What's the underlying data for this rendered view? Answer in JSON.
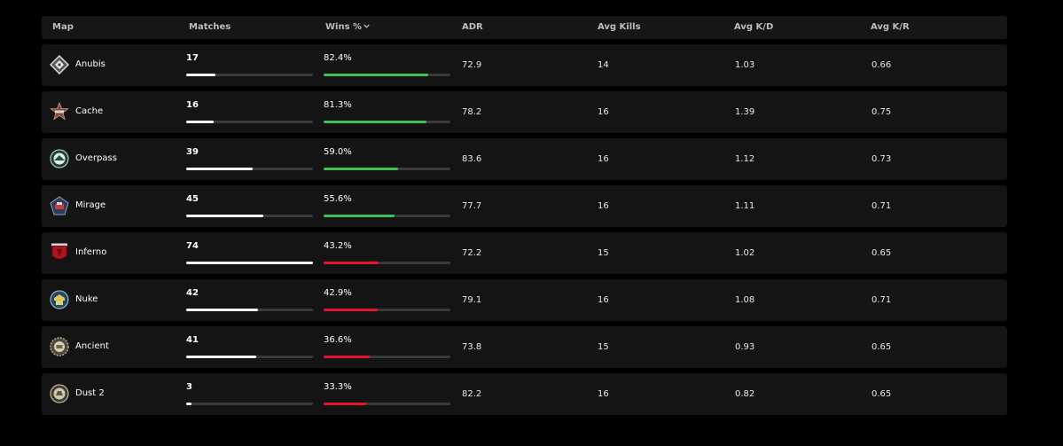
{
  "header": {
    "map": "Map",
    "matches": "Matches",
    "wins": "Wins %",
    "adr": "ADR",
    "avg_kills": "Avg Kills",
    "avg_kd": "Avg K/D",
    "avg_kr": "Avg K/R"
  },
  "colors": {
    "background": "#000000",
    "row": "#141414",
    "header": "#161616",
    "win_positive": "#3ec152",
    "win_negative": "#e4152b",
    "matches_bar": "#ffffff",
    "track": "#3a3a3a"
  },
  "rows": [
    {
      "icon": "anubis-icon",
      "map": "Anubis",
      "matches": "17",
      "matches_fraction": 0.23,
      "wins": "82.4%",
      "wins_fraction": 0.824,
      "win_color": "green",
      "adr": "72.9",
      "avg_kills": "14",
      "avg_kd": "1.03",
      "avg_kr": "0.66"
    },
    {
      "icon": "cache-icon",
      "map": "Cache",
      "matches": "16",
      "matches_fraction": 0.22,
      "wins": "81.3%",
      "wins_fraction": 0.813,
      "win_color": "green",
      "adr": "78.2",
      "avg_kills": "16",
      "avg_kd": "1.39",
      "avg_kr": "0.75"
    },
    {
      "icon": "overpass-icon",
      "map": "Overpass",
      "matches": "39",
      "matches_fraction": 0.527,
      "wins": "59.0%",
      "wins_fraction": 0.59,
      "win_color": "green",
      "adr": "83.6",
      "avg_kills": "16",
      "avg_kd": "1.12",
      "avg_kr": "0.73"
    },
    {
      "icon": "mirage-icon",
      "map": "Mirage",
      "matches": "45",
      "matches_fraction": 0.608,
      "wins": "55.6%",
      "wins_fraction": 0.556,
      "win_color": "green",
      "adr": "77.7",
      "avg_kills": "16",
      "avg_kd": "1.11",
      "avg_kr": "0.71"
    },
    {
      "icon": "inferno-icon",
      "map": "Inferno",
      "matches": "74",
      "matches_fraction": 1.0,
      "wins": "43.2%",
      "wins_fraction": 0.432,
      "win_color": "red",
      "adr": "72.2",
      "avg_kills": "15",
      "avg_kd": "1.02",
      "avg_kr": "0.65"
    },
    {
      "icon": "nuke-icon",
      "map": "Nuke",
      "matches": "42",
      "matches_fraction": 0.568,
      "wins": "42.9%",
      "wins_fraction": 0.429,
      "win_color": "red",
      "adr": "79.1",
      "avg_kills": "16",
      "avg_kd": "1.08",
      "avg_kr": "0.71"
    },
    {
      "icon": "ancient-icon",
      "map": "Ancient",
      "matches": "41",
      "matches_fraction": 0.554,
      "wins": "36.6%",
      "wins_fraction": 0.366,
      "win_color": "red",
      "adr": "73.8",
      "avg_kills": "15",
      "avg_kd": "0.93",
      "avg_kr": "0.65"
    },
    {
      "icon": "dust2-icon",
      "map": "Dust 2",
      "matches": "3",
      "matches_fraction": 0.041,
      "wins": "33.3%",
      "wins_fraction": 0.333,
      "win_color": "red",
      "adr": "82.2",
      "avg_kills": "16",
      "avg_kd": "0.82",
      "avg_kr": "0.65"
    }
  ]
}
